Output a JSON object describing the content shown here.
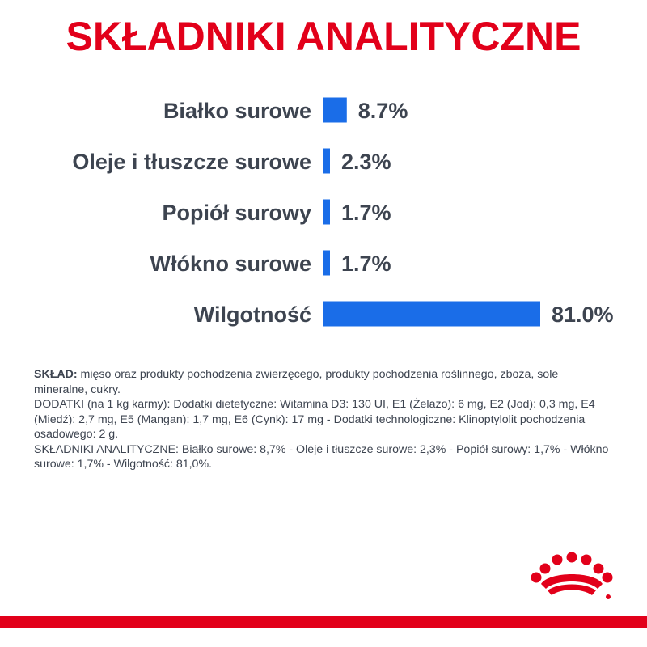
{
  "title": "SKŁADNIKI ANALITYCZNE",
  "chart_data": {
    "type": "bar",
    "orientation": "horizontal",
    "title": "SKŁADNIKI ANALITYCZNE",
    "categories": [
      "Białko surowe",
      "Oleje i tłuszcze surowe",
      "Popiół surowy",
      "Włókno surowe",
      "Wilgotność"
    ],
    "values": [
      8.7,
      2.3,
      1.7,
      1.7,
      81.0
    ],
    "value_labels": [
      "8.7%",
      "2.3%",
      "1.7%",
      "1.7%",
      "81.0%"
    ],
    "xlim": [
      0,
      81.0
    ],
    "grid": false,
    "bar_color": "#1a6de8"
  },
  "composition": {
    "sklad_label": "SKŁAD:",
    "sklad_text": " mięso oraz produkty pochodzenia zwierzęcego, produkty pochodzenia roślinnego, zboża, sole mineralne, cukry.",
    "dodatki_text": "DODATKI (na 1 kg karmy): Dodatki dietetyczne: Witamina D3: 130 UI, E1 (Żelazo): 6 mg, E2 (Jod): 0,3 mg, E4 (Miedź): 2,7 mg, E5 (Mangan): 1,7 mg, E6 (Cynk): 17 mg - Dodatki technologiczne: Klinoptylolit pochodzenia osadowego: 2 g.",
    "analityczne_text": "SKŁADNIKI ANALITYCZNE: Białko surowe: 8,7% - Oleje i tłuszcze surowe: 2,3% - Popiół surowy: 1,7% - Włókno surowe: 1,7% - Wilgotność: 81,0%."
  },
  "colors": {
    "brand_red": "#e2001a",
    "bar_blue": "#1a6de8",
    "text_gray": "#3d4450"
  },
  "logo_icon": "royal-canin-crown-icon"
}
